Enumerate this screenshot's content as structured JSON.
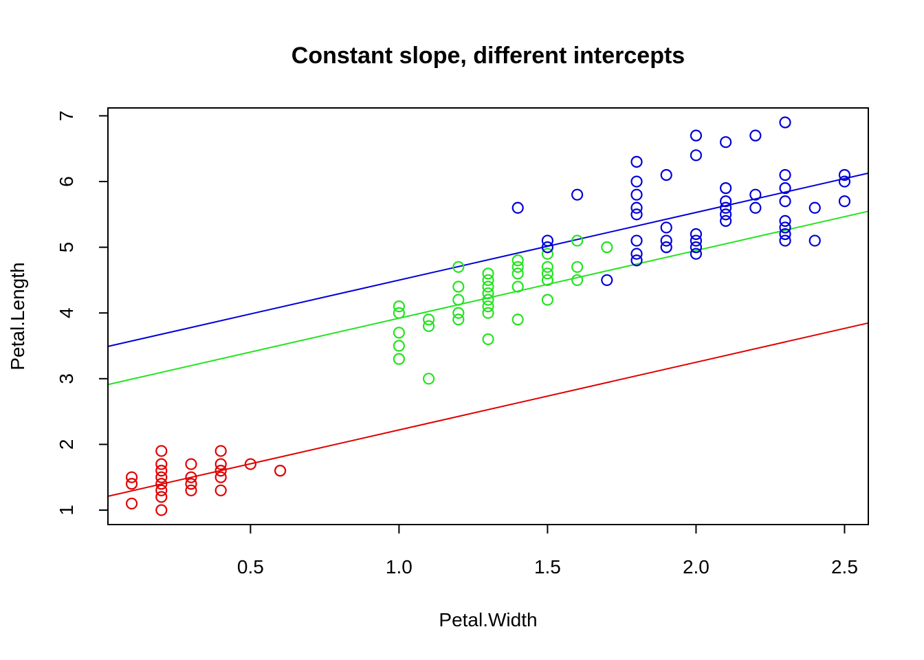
{
  "chart_data": {
    "type": "scatter",
    "title": "Constant slope, different intercepts",
    "xlabel": "Petal.Width",
    "ylabel": "Petal.Length",
    "xlim": [
      0.02,
      2.58
    ],
    "ylim": [
      0.78,
      7.12
    ],
    "x_ticks": [
      0.5,
      1.0,
      1.5,
      2.0,
      2.5
    ],
    "x_tick_labels": [
      "0.5",
      "1.0",
      "1.5",
      "2.0",
      "2.5"
    ],
    "y_ticks": [
      1,
      2,
      3,
      4,
      5,
      6,
      7
    ],
    "y_tick_labels": [
      "1",
      "2",
      "3",
      "4",
      "5",
      "6",
      "7"
    ],
    "grid": false,
    "legend": "none",
    "marker": "open-circle",
    "series": [
      {
        "color": "#DF0000",
        "points": [
          [
            0.1,
            1.5
          ],
          [
            0.1,
            1.4
          ],
          [
            0.1,
            1.1
          ],
          [
            0.2,
            1.9
          ],
          [
            0.2,
            1.7
          ],
          [
            0.2,
            1.6
          ],
          [
            0.2,
            1.5
          ],
          [
            0.2,
            1.4
          ],
          [
            0.2,
            1.3
          ],
          [
            0.2,
            1.2
          ],
          [
            0.2,
            1.0
          ],
          [
            0.3,
            1.7
          ],
          [
            0.3,
            1.5
          ],
          [
            0.3,
            1.4
          ],
          [
            0.3,
            1.3
          ],
          [
            0.4,
            1.9
          ],
          [
            0.4,
            1.7
          ],
          [
            0.4,
            1.6
          ],
          [
            0.4,
            1.5
          ],
          [
            0.4,
            1.3
          ],
          [
            0.5,
            1.7
          ],
          [
            0.6,
            1.6
          ]
        ],
        "fit": {
          "intercept": 1.19,
          "slope": 1.03
        }
      },
      {
        "color": "#22E41E",
        "points": [
          [
            1.0,
            4.1
          ],
          [
            1.0,
            4.0
          ],
          [
            1.0,
            3.7
          ],
          [
            1.0,
            3.5
          ],
          [
            1.0,
            3.3
          ],
          [
            1.1,
            3.9
          ],
          [
            1.1,
            3.8
          ],
          [
            1.1,
            3.0
          ],
          [
            1.2,
            4.7
          ],
          [
            1.2,
            4.4
          ],
          [
            1.2,
            4.2
          ],
          [
            1.2,
            4.0
          ],
          [
            1.2,
            3.9
          ],
          [
            1.3,
            4.6
          ],
          [
            1.3,
            4.5
          ],
          [
            1.3,
            4.4
          ],
          [
            1.3,
            4.3
          ],
          [
            1.3,
            4.2
          ],
          [
            1.3,
            4.1
          ],
          [
            1.3,
            4.0
          ],
          [
            1.3,
            3.6
          ],
          [
            1.4,
            4.8
          ],
          [
            1.4,
            4.7
          ],
          [
            1.4,
            4.6
          ],
          [
            1.4,
            4.4
          ],
          [
            1.4,
            3.9
          ],
          [
            1.5,
            4.9
          ],
          [
            1.5,
            4.7
          ],
          [
            1.5,
            4.6
          ],
          [
            1.5,
            4.5
          ],
          [
            1.5,
            4.2
          ],
          [
            1.6,
            5.1
          ],
          [
            1.6,
            4.7
          ],
          [
            1.6,
            4.5
          ],
          [
            1.7,
            5.0
          ]
        ],
        "fit": {
          "intercept": 2.89,
          "slope": 1.03
        }
      },
      {
        "color": "#0000D8",
        "points": [
          [
            1.4,
            5.6
          ],
          [
            1.5,
            5.1
          ],
          [
            1.5,
            5.0
          ],
          [
            1.6,
            5.8
          ],
          [
            1.7,
            4.5
          ],
          [
            1.8,
            6.3
          ],
          [
            1.8,
            6.0
          ],
          [
            1.8,
            5.8
          ],
          [
            1.8,
            5.6
          ],
          [
            1.8,
            5.5
          ],
          [
            1.8,
            5.1
          ],
          [
            1.8,
            4.9
          ],
          [
            1.8,
            4.8
          ],
          [
            1.9,
            6.1
          ],
          [
            1.9,
            5.3
          ],
          [
            1.9,
            5.1
          ],
          [
            1.9,
            5.0
          ],
          [
            2.0,
            6.7
          ],
          [
            2.0,
            6.4
          ],
          [
            2.0,
            5.2
          ],
          [
            2.0,
            5.1
          ],
          [
            2.0,
            5.0
          ],
          [
            2.0,
            4.9
          ],
          [
            2.1,
            6.6
          ],
          [
            2.1,
            5.9
          ],
          [
            2.1,
            5.7
          ],
          [
            2.1,
            5.6
          ],
          [
            2.1,
            5.5
          ],
          [
            2.1,
            5.4
          ],
          [
            2.2,
            6.7
          ],
          [
            2.2,
            5.8
          ],
          [
            2.2,
            5.6
          ],
          [
            2.3,
            6.9
          ],
          [
            2.3,
            6.1
          ],
          [
            2.3,
            5.9
          ],
          [
            2.3,
            5.7
          ],
          [
            2.3,
            5.4
          ],
          [
            2.3,
            5.3
          ],
          [
            2.3,
            5.2
          ],
          [
            2.3,
            5.1
          ],
          [
            2.4,
            5.6
          ],
          [
            2.4,
            5.1
          ],
          [
            2.5,
            6.1
          ],
          [
            2.5,
            6.0
          ],
          [
            2.5,
            5.7
          ]
        ],
        "fit": {
          "intercept": 3.47,
          "slope": 1.03
        }
      }
    ]
  }
}
